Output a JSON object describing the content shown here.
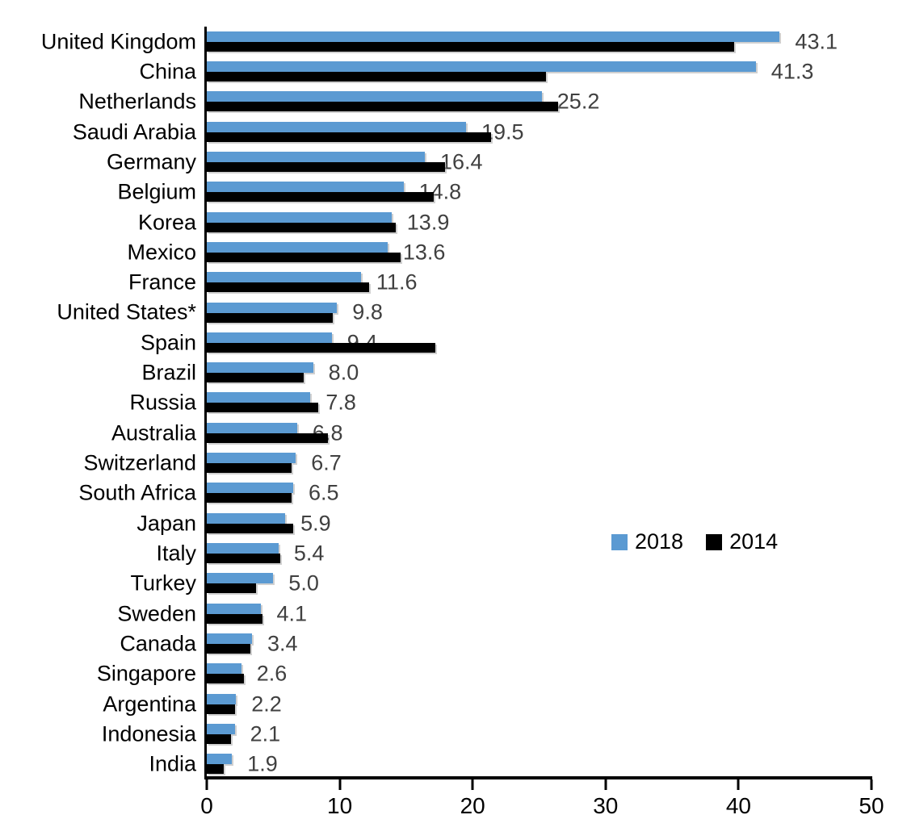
{
  "chart_data": {
    "type": "bar",
    "orientation": "horizontal",
    "title": "",
    "xlabel": "",
    "ylabel": "",
    "xlim": [
      0,
      50
    ],
    "x_ticks": [
      "0",
      "10",
      "20",
      "30",
      "40",
      "50"
    ],
    "grid": false,
    "legend_position": "middle-right",
    "categories": [
      "United Kingdom",
      "China",
      "Netherlands",
      "Saudi Arabia",
      "Germany",
      "Belgium",
      "Korea",
      "Mexico",
      "France",
      "United States*",
      "Spain",
      "Brazil",
      "Russia",
      "Australia",
      "Switzerland",
      "South Africa",
      "Japan",
      "Italy",
      "Turkey",
      "Sweden",
      "Canada",
      "Singapore",
      "Argentina",
      "Indonesia",
      "India"
    ],
    "series": [
      {
        "name": "2018",
        "color": "#5B9AD2",
        "values": [
          43.1,
          41.3,
          25.2,
          19.5,
          16.4,
          14.8,
          13.9,
          13.6,
          11.6,
          9.8,
          9.4,
          8.0,
          7.8,
          6.8,
          6.7,
          6.5,
          5.9,
          5.4,
          5.0,
          4.1,
          3.4,
          2.6,
          2.2,
          2.1,
          1.9
        ]
      },
      {
        "name": "2014",
        "color": "#000000",
        "values": [
          39.7,
          25.5,
          26.4,
          21.4,
          17.9,
          17.1,
          14.2,
          14.6,
          12.2,
          9.5,
          17.2,
          7.3,
          8.4,
          9.1,
          6.4,
          6.4,
          6.5,
          5.5,
          3.7,
          4.2,
          3.3,
          2.8,
          2.1,
          1.8,
          1.3
        ]
      }
    ],
    "data_labels": [
      "43.1",
      "41.3",
      "25.2",
      "19.5",
      "16.4",
      "14.8",
      "13.9",
      "13.6",
      "11.6",
      "9.8",
      "9.4",
      "8.0",
      "7.8",
      "6.8",
      "6.7",
      "6.5",
      "5.9",
      "5.4",
      "5.0",
      "4.1",
      "3.4",
      "2.6",
      "2.2",
      "2.1",
      "1.9"
    ],
    "data_label_color": "#404040",
    "axis_color": "#000000"
  }
}
